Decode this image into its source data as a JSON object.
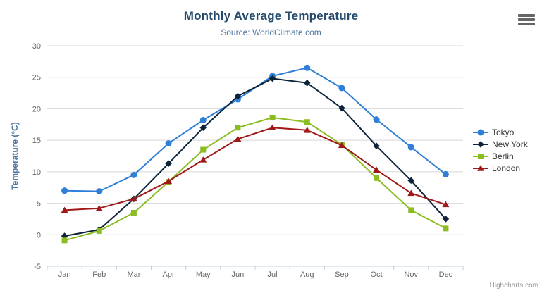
{
  "header": {
    "title": "Monthly Average Temperature",
    "subtitle": "Source: WorldClimate.com"
  },
  "icons": {
    "context_menu": "hamburger-icon"
  },
  "credit": {
    "label": "Highcharts.com"
  },
  "colors": {
    "background": "#ffffff",
    "title": "#274b6d",
    "subtitle": "#4d759e",
    "axis_label": "#666666",
    "axis_title": "#4d759e",
    "grid_line": "#d8d8d8",
    "axis_line": "#c0d0e0",
    "legend_text": "#333333",
    "credit_text": "#999999",
    "menu_icon": "#666666"
  },
  "chart_data": {
    "type": "line",
    "title": "Monthly Average Temperature",
    "subtitle": "Source: WorldClimate.com",
    "xlabel": "",
    "ylabel": "Temperature (°C)",
    "categories": [
      "Jan",
      "Feb",
      "Mar",
      "Apr",
      "May",
      "Jun",
      "Jul",
      "Aug",
      "Sep",
      "Oct",
      "Nov",
      "Dec"
    ],
    "ylim": [
      -5,
      30
    ],
    "yticks": [
      -5,
      0,
      5,
      10,
      15,
      20,
      25,
      30
    ],
    "grid": true,
    "legend_position": "right",
    "series": [
      {
        "name": "Tokyo",
        "color": "#2f7ed8",
        "marker": "circle",
        "values": [
          7.0,
          6.9,
          9.5,
          14.5,
          18.2,
          21.5,
          25.2,
          26.5,
          23.3,
          18.3,
          13.9,
          9.6
        ]
      },
      {
        "name": "New York",
        "color": "#0d233a",
        "marker": "diamond",
        "values": [
          -0.2,
          0.8,
          5.7,
          11.3,
          17.0,
          22.0,
          24.8,
          24.1,
          20.1,
          14.1,
          8.6,
          2.5
        ]
      },
      {
        "name": "Berlin",
        "color": "#8bbc21",
        "marker": "square",
        "values": [
          -0.9,
          0.6,
          3.5,
          8.4,
          13.5,
          17.0,
          18.6,
          17.9,
          14.3,
          9.0,
          3.9,
          1.0
        ]
      },
      {
        "name": "London",
        "color": "#a01818",
        "marker": "triangle",
        "values": [
          3.9,
          4.2,
          5.7,
          8.5,
          11.9,
          15.2,
          17.0,
          16.6,
          14.2,
          10.3,
          6.6,
          4.8
        ]
      }
    ]
  }
}
